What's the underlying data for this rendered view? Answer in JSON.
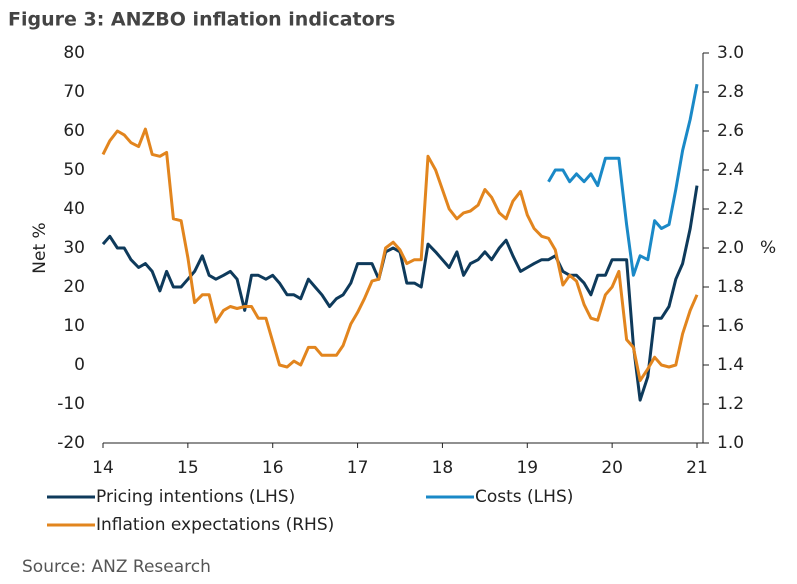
{
  "chart_data": {
    "type": "line",
    "title": "Figure 3: ANZBO inflation indicators",
    "y_label": "Net %",
    "y2_label": "%",
    "source": "Source: ANZ Research",
    "xlim": [
      14,
      21
    ],
    "xticks": [
      14,
      15,
      16,
      17,
      18,
      19,
      20,
      21
    ],
    "ylim": [
      -20,
      80
    ],
    "yticks": [
      -20,
      -10,
      0,
      10,
      20,
      30,
      40,
      50,
      60,
      70,
      80
    ],
    "y2lim": [
      1.0,
      3.0
    ],
    "y2ticks": [
      {
        "value": 1.0,
        "label": "1.0"
      },
      {
        "value": 1.2,
        "label": "1.2"
      },
      {
        "value": 1.4,
        "label": "1.4"
      },
      {
        "value": 1.6,
        "label": "1.6"
      },
      {
        "value": 1.8,
        "label": "1.8"
      },
      {
        "value": 2.0,
        "label": "2.0"
      },
      {
        "value": 2.2,
        "label": "2.2"
      },
      {
        "value": 2.4,
        "label": "2.4"
      },
      {
        "value": 2.6,
        "label": "2.6"
      },
      {
        "value": 2.8,
        "label": "2.8"
      },
      {
        "value": 3.0,
        "label": "3.0"
      }
    ],
    "series": [
      {
        "name": "Pricing intentions (LHS)",
        "color": "#0e3a5b",
        "axis": "y",
        "x": [
          14,
          14.08,
          14.17,
          14.25,
          14.33,
          14.42,
          14.5,
          14.58,
          14.67,
          14.75,
          14.83,
          14.92,
          15,
          15.08,
          15.17,
          15.25,
          15.33,
          15.42,
          15.5,
          15.58,
          15.67,
          15.75,
          15.83,
          15.92,
          16,
          16.08,
          16.17,
          16.25,
          16.33,
          16.42,
          16.5,
          16.58,
          16.67,
          16.75,
          16.83,
          16.92,
          17,
          17.08,
          17.17,
          17.25,
          17.33,
          17.42,
          17.5,
          17.58,
          17.67,
          17.75,
          17.83,
          17.92,
          18,
          18.08,
          18.17,
          18.25,
          18.33,
          18.42,
          18.5,
          18.58,
          18.67,
          18.75,
          18.83,
          18.92,
          19,
          19.08,
          19.17,
          19.25,
          19.33,
          19.42,
          19.5,
          19.58,
          19.67,
          19.75,
          19.83,
          19.92,
          20,
          20.08,
          20.17,
          20.25,
          20.33,
          20.42,
          20.5,
          20.58,
          20.67,
          20.75,
          20.83,
          20.92,
          21
        ],
        "values": [
          31,
          33,
          30,
          30,
          27,
          25,
          26,
          24,
          19,
          24,
          20,
          20,
          22,
          24,
          28,
          23,
          22,
          23,
          24,
          22,
          14,
          23,
          23,
          22,
          23,
          21,
          18,
          18,
          17,
          22,
          20,
          18,
          15,
          17,
          18,
          21,
          26,
          26,
          26,
          22,
          29,
          30,
          29,
          21,
          21,
          20,
          31,
          29,
          27,
          25,
          29,
          23,
          26,
          27,
          29,
          27,
          30,
          32,
          28,
          24,
          25,
          26,
          27,
          27,
          28,
          24,
          23,
          23,
          21,
          18,
          23,
          23,
          27,
          27,
          27,
          5,
          -9,
          -3,
          12,
          12,
          15,
          22,
          26,
          35,
          46
        ]
      },
      {
        "name": "Costs (LHS)",
        "color": "#1a89c7",
        "axis": "y",
        "x": [
          19.25,
          19.33,
          19.42,
          19.5,
          19.58,
          19.67,
          19.75,
          19.83,
          19.92,
          20,
          20.08,
          20.17,
          20.25,
          20.33,
          20.42,
          20.5,
          20.58,
          20.67,
          20.75,
          20.83,
          20.92,
          21
        ],
        "values": [
          47,
          50,
          50,
          47,
          49,
          47,
          49,
          46,
          53,
          53,
          53,
          36,
          23,
          28,
          27,
          37,
          35,
          36,
          45,
          55,
          63,
          72
        ]
      },
      {
        "name": "Inflation expectations (RHS)",
        "color": "#e2851e",
        "axis": "y2",
        "x": [
          14,
          14.08,
          14.17,
          14.25,
          14.33,
          14.42,
          14.5,
          14.58,
          14.67,
          14.75,
          14.83,
          14.92,
          15,
          15.08,
          15.17,
          15.25,
          15.33,
          15.42,
          15.5,
          15.58,
          15.67,
          15.75,
          15.83,
          15.92,
          16,
          16.08,
          16.17,
          16.25,
          16.33,
          16.42,
          16.5,
          16.58,
          16.67,
          16.75,
          16.83,
          16.92,
          17,
          17.08,
          17.17,
          17.25,
          17.33,
          17.42,
          17.5,
          17.58,
          17.67,
          17.75,
          17.83,
          17.92,
          18,
          18.08,
          18.17,
          18.25,
          18.33,
          18.42,
          18.5,
          18.58,
          18.67,
          18.75,
          18.83,
          18.92,
          19,
          19.08,
          19.17,
          19.25,
          19.33,
          19.42,
          19.5,
          19.58,
          19.67,
          19.75,
          19.83,
          19.92,
          20,
          20.08,
          20.17,
          20.25,
          20.33,
          20.42,
          20.5,
          20.58,
          20.67,
          20.75,
          20.83,
          20.92,
          21
        ],
        "values": [
          2.48,
          2.55,
          2.6,
          2.58,
          2.54,
          2.52,
          2.61,
          2.48,
          2.47,
          2.49,
          2.15,
          2.14,
          1.95,
          1.72,
          1.76,
          1.76,
          1.62,
          1.68,
          1.7,
          1.69,
          1.7,
          1.7,
          1.64,
          1.64,
          1.52,
          1.4,
          1.39,
          1.42,
          1.4,
          1.49,
          1.49,
          1.45,
          1.45,
          1.45,
          1.5,
          1.61,
          1.67,
          1.74,
          1.83,
          1.84,
          2.0,
          2.03,
          1.99,
          1.92,
          1.94,
          1.94,
          2.47,
          2.4,
          2.3,
          2.2,
          2.15,
          2.18,
          2.19,
          2.22,
          2.3,
          2.26,
          2.18,
          2.15,
          2.24,
          2.29,
          2.17,
          2.1,
          2.06,
          2.05,
          1.99,
          1.81,
          1.86,
          1.83,
          1.71,
          1.64,
          1.63,
          1.76,
          1.8,
          1.88,
          1.53,
          1.49,
          1.32,
          1.38,
          1.44,
          1.4,
          1.39,
          1.4,
          1.56,
          1.68,
          1.76
        ]
      }
    ]
  }
}
